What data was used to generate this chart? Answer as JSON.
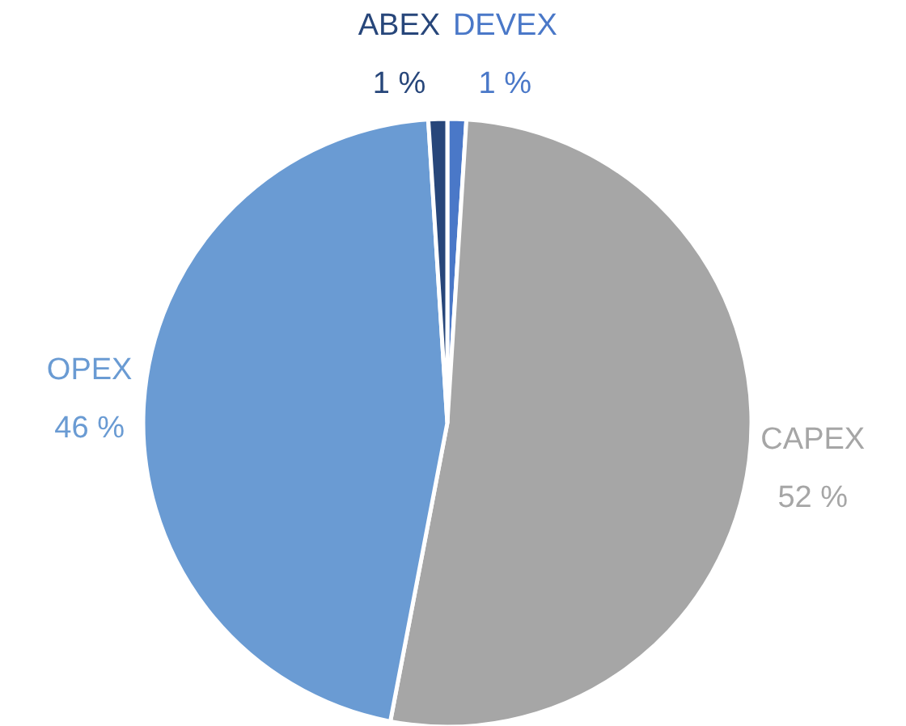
{
  "chart_data": {
    "type": "pie",
    "categories": [
      "DEVEX",
      "CAPEX",
      "OPEX",
      "ABEX"
    ],
    "values": [
      1,
      52,
      46,
      1
    ],
    "colors": [
      "#4a78c8",
      "#a6a6a6",
      "#6a9bd3",
      "#27467a"
    ],
    "value_labels": [
      "1 %",
      "52 %",
      "46 %",
      "1 %"
    ]
  }
}
